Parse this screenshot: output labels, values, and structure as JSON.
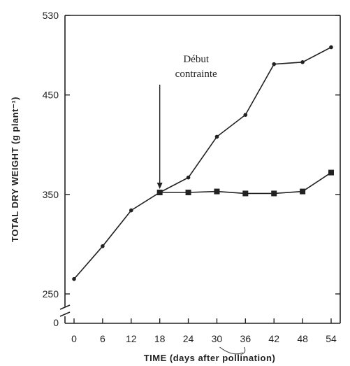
{
  "chart_data": {
    "type": "line",
    "title": "",
    "xlabel": "TIME (days after pollination)",
    "ylabel": "TOTAL DRY WEIGHT (g plant⁻¹)",
    "xlim": [
      0,
      54
    ],
    "ylim": [
      250,
      530
    ],
    "x_ticks": [
      "0",
      "6",
      "12",
      "18",
      "24",
      "30",
      "36",
      "42",
      "48",
      "54"
    ],
    "y_ticks": [
      {
        "value": 250,
        "label": "250"
      },
      {
        "value": 350,
        "label": "350"
      },
      {
        "value": 450,
        "label": "450"
      },
      {
        "value": 530,
        "label": "530"
      }
    ],
    "y_break_label": "0",
    "grid": false,
    "series": [
      {
        "marker": "circle",
        "color": "#222222",
        "x": [
          0,
          6,
          12,
          18,
          24,
          30,
          36,
          42,
          48,
          54
        ],
        "y": [
          265,
          298,
          334,
          352,
          367,
          408,
          430,
          481,
          483,
          498
        ]
      },
      {
        "marker": "square",
        "color": "#222222",
        "x": [
          18,
          24,
          30,
          36,
          42,
          48,
          54
        ],
        "y": [
          352,
          352,
          353,
          351,
          351,
          353,
          372
        ]
      }
    ],
    "annotation": {
      "text_line1": "Début",
      "text_line2": "contrainte",
      "x": 18,
      "y": 352
    }
  }
}
